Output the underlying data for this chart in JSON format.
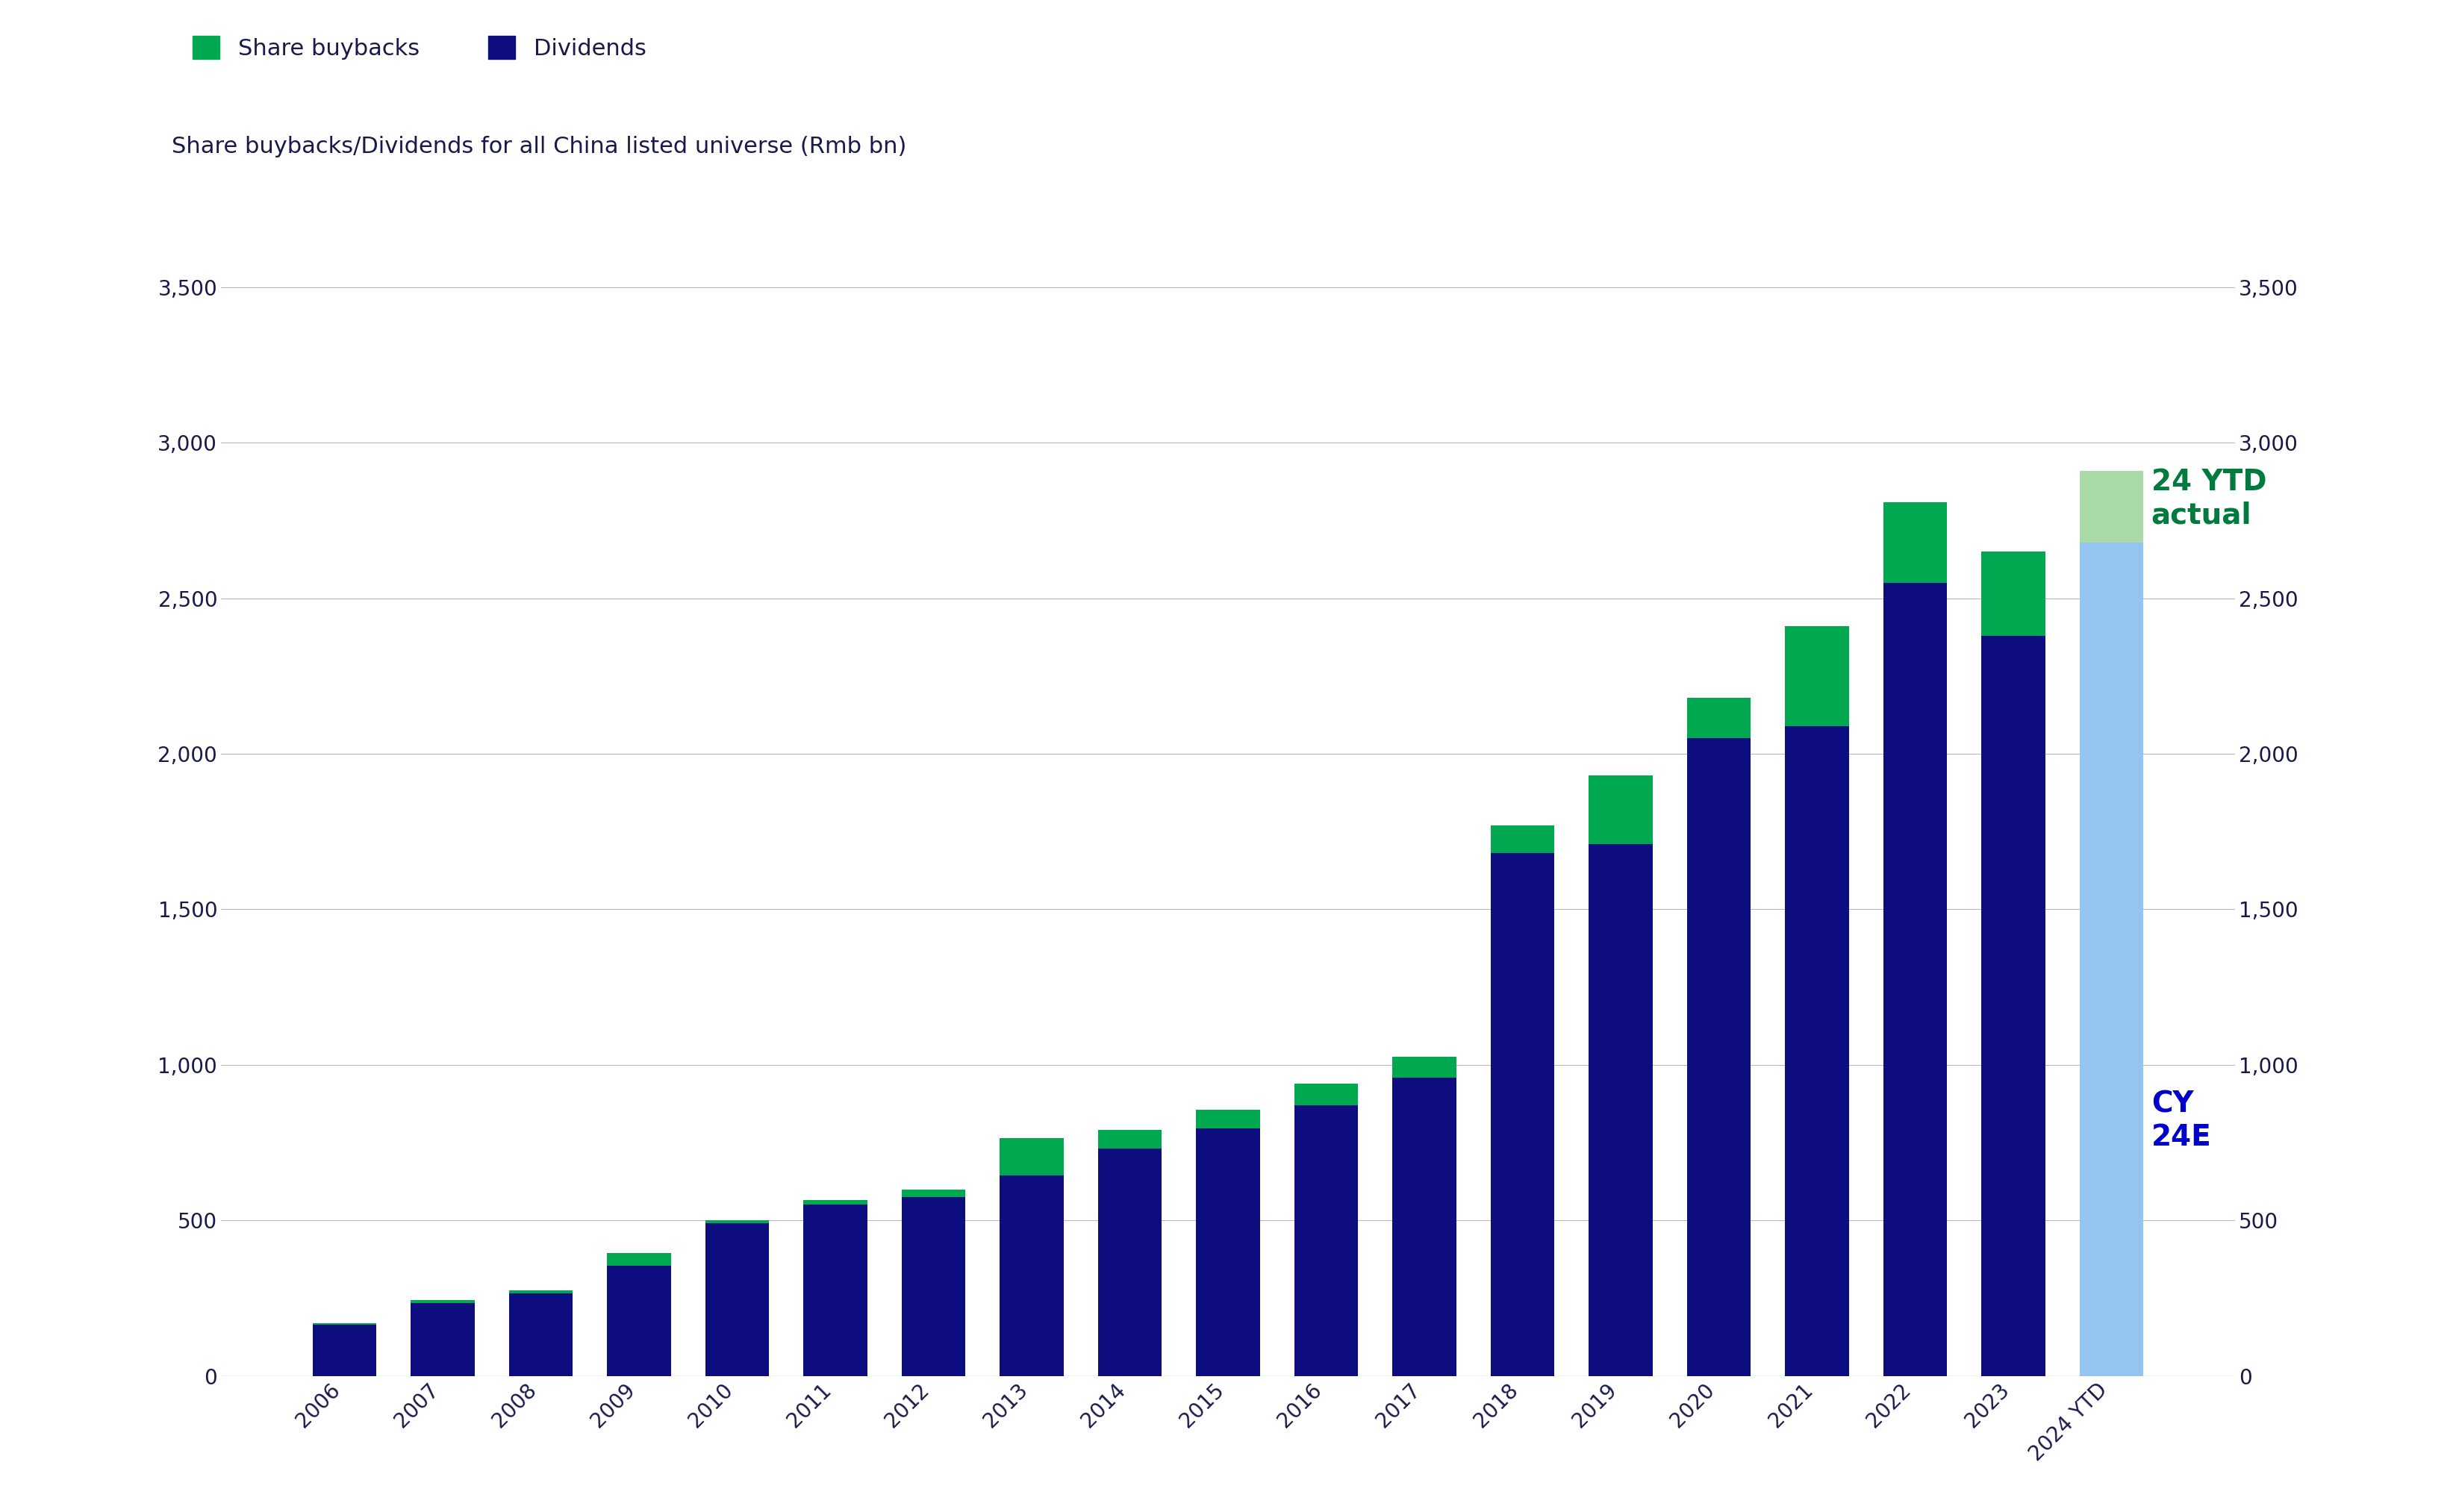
{
  "years": [
    "2006",
    "2007",
    "2008",
    "2009",
    "2010",
    "2011",
    "2012",
    "2013",
    "2014",
    "2015",
    "2016",
    "2017",
    "2018",
    "2019",
    "2020",
    "2021",
    "2022",
    "2023",
    "2024 YTD"
  ],
  "dividends": [
    165,
    235,
    265,
    355,
    490,
    550,
    575,
    645,
    730,
    795,
    870,
    960,
    1680,
    1710,
    2050,
    2090,
    2550,
    2380,
    2680
  ],
  "buybacks": [
    5,
    10,
    10,
    40,
    10,
    15,
    25,
    120,
    60,
    60,
    70,
    65,
    90,
    220,
    130,
    320,
    260,
    270,
    230
  ],
  "bar_color_dividends": "#0D0D80",
  "bar_color_buybacks": "#00A84F",
  "bar_color_ytd_dividends": "#93C5F0",
  "bar_color_ytd_buybacks": "#A8DBA8",
  "annotation_color_green": "#007A3D",
  "annotation_color_blue": "#0000CC",
  "ylabel_left": "Share buybacks/Dividends for all China listed universe (Rmb bn)",
  "ylim": [
    0,
    3500
  ],
  "yticks": [
    0,
    500,
    1000,
    1500,
    2000,
    2500,
    3000,
    3500
  ],
  "grid_color": "#B0B0C8",
  "text_color": "#1A1A4A",
  "background_color": "#FFFFFF",
  "legend_buybacks": "Share buybacks",
  "legend_dividends": "Dividends",
  "annotation_ytd": "24 YTD\nactual",
  "annotation_cy24e": "CY\n24E"
}
